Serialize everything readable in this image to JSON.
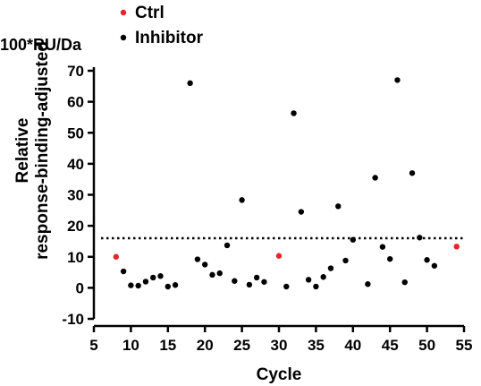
{
  "chart_data": {
    "type": "scatter",
    "xlabel": "Cycle",
    "ylabel_lines": [
      "Relative",
      "response-binding-adjusted"
    ],
    "y_unit": "100*RU/Da",
    "xlim": [
      5,
      55
    ],
    "ylim": [
      -10,
      70
    ],
    "x_ticks": [
      5,
      10,
      15,
      20,
      25,
      30,
      35,
      40,
      45,
      50,
      55
    ],
    "y_ticks": [
      -10,
      0,
      10,
      20,
      30,
      40,
      50,
      60,
      70
    ],
    "reference_line": {
      "y": 16,
      "style": "dotted"
    },
    "legend": {
      "placement": "top-left"
    },
    "series": [
      {
        "name": "Ctrl",
        "color": "#e8232a",
        "points": [
          [
            8,
            10
          ],
          [
            30,
            10.3
          ],
          [
            54,
            13.3
          ]
        ]
      },
      {
        "name": "Inhibitor",
        "color": "#000000",
        "points": [
          [
            9,
            5.3
          ],
          [
            10,
            0.8
          ],
          [
            11,
            0.7
          ],
          [
            12,
            2
          ],
          [
            13,
            3.3
          ],
          [
            14,
            3.8
          ],
          [
            15,
            0.4
          ],
          [
            16,
            0.9
          ],
          [
            18,
            66
          ],
          [
            19,
            9.2
          ],
          [
            20,
            7.5
          ],
          [
            21,
            4.2
          ],
          [
            22,
            4.7
          ],
          [
            23,
            13.7
          ],
          [
            24,
            2.2
          ],
          [
            25,
            28.3
          ],
          [
            26,
            1
          ],
          [
            27,
            3.3
          ],
          [
            28,
            1.9
          ],
          [
            31,
            0.4
          ],
          [
            32,
            56.3
          ],
          [
            33,
            24.5
          ],
          [
            34,
            2.6
          ],
          [
            35,
            0.4
          ],
          [
            36,
            3.5
          ],
          [
            37,
            6.3
          ],
          [
            38,
            26.3
          ],
          [
            39,
            8.8
          ],
          [
            40,
            15.5
          ],
          [
            42,
            1.2
          ],
          [
            43,
            35.5
          ],
          [
            44,
            13.2
          ],
          [
            45,
            9.3
          ],
          [
            46,
            67
          ],
          [
            47,
            1.8
          ],
          [
            48,
            37
          ],
          [
            49,
            16.2
          ],
          [
            50,
            9
          ],
          [
            51,
            7.1
          ]
        ]
      }
    ]
  }
}
